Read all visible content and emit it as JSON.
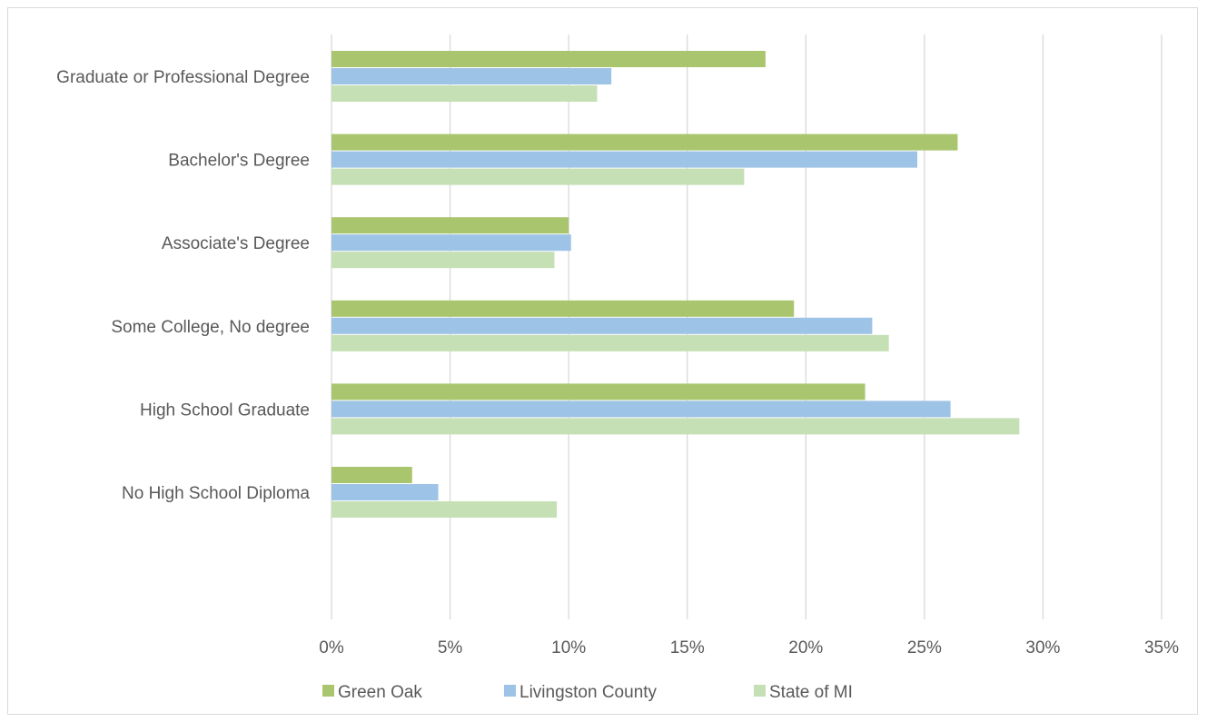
{
  "chart_data": {
    "type": "bar",
    "orientation": "horizontal",
    "title": "",
    "xlabel": "",
    "ylabel": "",
    "categories": [
      "Graduate or Professional Degree",
      "Bachelor's Degree",
      "Associate's Degree",
      "Some College, No degree",
      "High School Graduate",
      "No High School Diploma"
    ],
    "series": [
      {
        "name": "Green Oak",
        "color": "#a9c66f",
        "values": [
          18.3,
          26.4,
          10.0,
          19.5,
          22.5,
          3.4
        ]
      },
      {
        "name": "Livingston County",
        "color": "#9dc3e6",
        "values": [
          11.8,
          24.7,
          10.1,
          22.8,
          26.1,
          4.5
        ]
      },
      {
        "name": "State of MI",
        "color": "#c5e0b4",
        "values": [
          11.2,
          17.4,
          9.4,
          23.5,
          29.0,
          9.5
        ]
      }
    ],
    "xlim": [
      0,
      35
    ],
    "ticks": [
      "0%",
      "5%",
      "10%",
      "15%",
      "20%",
      "25%",
      "30%",
      "35%"
    ],
    "tick_values": [
      0,
      5,
      10,
      15,
      20,
      25,
      30,
      35
    ],
    "grid": true,
    "legend_position": "bottom"
  }
}
